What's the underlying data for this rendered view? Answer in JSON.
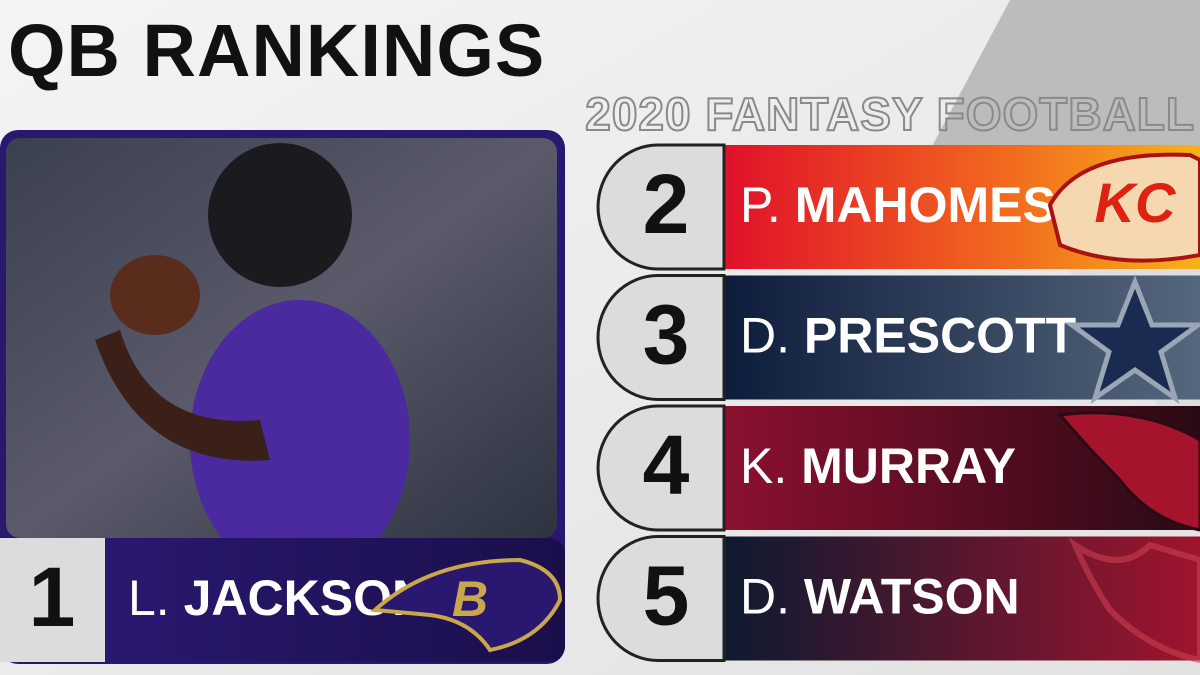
{
  "header": {
    "title": "QB RANKINGS",
    "subtitle": "2020 FANTASY FOOTBALL"
  },
  "rankings": [
    {
      "rank": 1,
      "initial": "L.",
      "surname": "JACKSON"
    },
    {
      "rank": 2,
      "initial": "P.",
      "surname": "MAHOMES"
    },
    {
      "rank": 3,
      "initial": "D.",
      "surname": "PRESCOTT"
    },
    {
      "rank": 4,
      "initial": "K.",
      "surname": "MURRAY"
    },
    {
      "rank": 5,
      "initial": "D.",
      "surname": "WATSON"
    }
  ]
}
